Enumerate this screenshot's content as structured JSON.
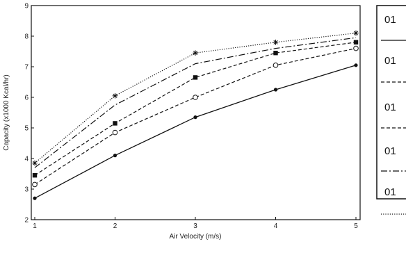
{
  "chart_data": {
    "type": "line",
    "xlabel": "Air Velocity (m/s)",
    "ylabel": "Capacity (x1000 Kcal/hr)",
    "xlim": [
      1,
      5
    ],
    "ylim": [
      2,
      9
    ],
    "x_ticks": [
      1,
      2,
      3,
      4,
      5
    ],
    "y_ticks": [
      2,
      3,
      4,
      5,
      6,
      7,
      8,
      9
    ],
    "grid": false,
    "legend_position": "right",
    "x": [
      1,
      2,
      3,
      4,
      5
    ],
    "series": [
      {
        "name": "01",
        "style": "solid",
        "marker": "dot",
        "values": [
          2.7,
          4.1,
          5.35,
          6.25,
          7.05
        ]
      },
      {
        "name": "01",
        "style": "dashed",
        "marker": "circle",
        "values": [
          3.15,
          4.85,
          6.0,
          7.05,
          7.6
        ]
      },
      {
        "name": "01",
        "style": "dashed",
        "marker": "square",
        "values": [
          3.45,
          5.15,
          6.65,
          7.45,
          7.8
        ]
      },
      {
        "name": "01",
        "style": "dashdot",
        "marker": "none",
        "values": [
          3.7,
          5.75,
          7.1,
          7.6,
          7.95
        ]
      },
      {
        "name": "01",
        "style": "dotted",
        "marker": "star",
        "values": [
          3.85,
          6.05,
          7.45,
          7.8,
          8.1
        ]
      }
    ],
    "legend_entries": [
      {
        "label": "01",
        "line_style": "solid"
      },
      {
        "label": "01",
        "line_style": "dashed"
      },
      {
        "label": "01",
        "line_style": "dashed"
      },
      {
        "label": "01",
        "line_style": "dashdot"
      },
      {
        "label": "01",
        "line_style": "dotted"
      }
    ]
  }
}
